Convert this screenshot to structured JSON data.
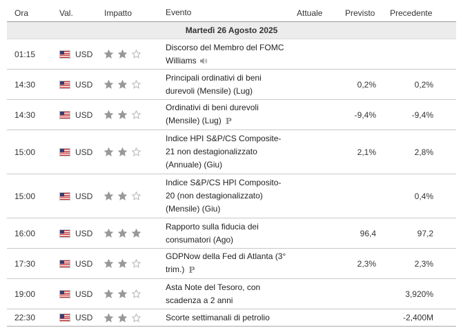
{
  "columns": {
    "time": "Ora",
    "currency": "Val.",
    "impact": "Impatto",
    "event": "Evento",
    "actual": "Attuale",
    "forecast": "Previsto",
    "previous": "Precedente"
  },
  "date_label": "Martedì 26 Agosto 2025",
  "rows": [
    {
      "time": "01:15",
      "currency": "USD",
      "stars": 2,
      "event": "Discorso del Membro del FOMC Williams",
      "icon": "speaker-icon",
      "actual": "",
      "forecast": "",
      "previous": ""
    },
    {
      "time": "14:30",
      "currency": "USD",
      "stars": 2,
      "event": "Principali ordinativi di beni durevoli (Mensile) (Lug)",
      "icon": "",
      "actual": "",
      "forecast": "0,2%",
      "previous": "0,2%"
    },
    {
      "time": "14:30",
      "currency": "USD",
      "stars": 2,
      "event": "Ordinativi di beni durevoli (Mensile) (Lug)",
      "icon": "preliminary-icon",
      "actual": "",
      "forecast": "-9,4%",
      "previous": "-9,4%"
    },
    {
      "time": "15:00",
      "currency": "USD",
      "stars": 2,
      "event": "Indice HPI S&P/CS Composite-21 non destagionalizzato (Annuale) (Giu)",
      "icon": "",
      "actual": "",
      "forecast": "2,1%",
      "previous": "2,8%"
    },
    {
      "time": "15:00",
      "currency": "USD",
      "stars": 2,
      "event": "Indice S&P/CS HPI Composito-20 (non destagionalizzato) (Mensile) (Giu)",
      "icon": "",
      "actual": "",
      "forecast": "",
      "previous": "0,4%"
    },
    {
      "time": "16:00",
      "currency": "USD",
      "stars": 3,
      "event": "Rapporto sulla fiducia dei consumatori (Ago)",
      "icon": "",
      "actual": "",
      "forecast": "96,4",
      "previous": "97,2"
    },
    {
      "time": "17:30",
      "currency": "USD",
      "stars": 2,
      "event": "GDPNow della Fed di Atlanta (3° trim.)",
      "icon": "preliminary-icon",
      "actual": "",
      "forecast": "2,3%",
      "previous": "2,3%"
    },
    {
      "time": "19:00",
      "currency": "USD",
      "stars": 2,
      "event": "Asta Note del Tesoro, con scadenza a 2 anni",
      "icon": "",
      "actual": "",
      "forecast": "",
      "previous": "3,920%"
    },
    {
      "time": "22:30",
      "currency": "USD",
      "stars": 2,
      "event": "Scorte settimanali di petrolio",
      "icon": "",
      "actual": "",
      "forecast": "",
      "previous": "-2,400M"
    }
  ],
  "preliminary_mark": "P",
  "colors": {
    "star_on": "#999999",
    "star_off": "#b5b5b5",
    "date_bg": "#ececec"
  }
}
